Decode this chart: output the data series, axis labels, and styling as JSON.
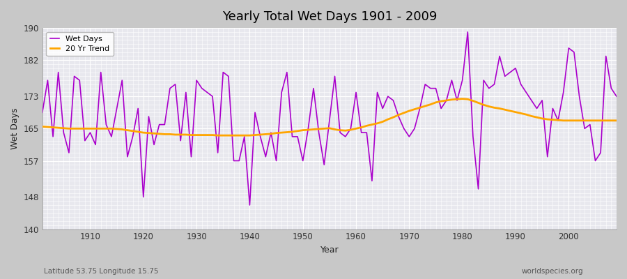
{
  "title": "Yearly Total Wet Days 1901 - 2009",
  "xlabel": "Year",
  "ylabel": "Wet Days",
  "lat_label": "Latitude 53.75 Longitude 15.75",
  "watermark": "worldspecies.org",
  "ylim": [
    140,
    190
  ],
  "yticks": [
    140,
    148,
    157,
    165,
    173,
    182,
    190
  ],
  "line_color": "#aa00cc",
  "trend_color": "#ffa500",
  "fig_bg_color": "#c8c8c8",
  "plot_bg_color": "#e8e8ee",
  "years": [
    1901,
    1902,
    1903,
    1904,
    1905,
    1906,
    1907,
    1908,
    1909,
    1910,
    1911,
    1912,
    1913,
    1914,
    1915,
    1916,
    1917,
    1918,
    1919,
    1920,
    1921,
    1922,
    1923,
    1924,
    1925,
    1926,
    1927,
    1928,
    1929,
    1930,
    1931,
    1932,
    1933,
    1934,
    1935,
    1936,
    1937,
    1938,
    1939,
    1940,
    1941,
    1942,
    1943,
    1944,
    1945,
    1946,
    1947,
    1948,
    1949,
    1950,
    1951,
    1952,
    1953,
    1954,
    1955,
    1956,
    1957,
    1958,
    1959,
    1960,
    1961,
    1962,
    1963,
    1964,
    1965,
    1966,
    1967,
    1968,
    1969,
    1970,
    1971,
    1972,
    1973,
    1974,
    1975,
    1976,
    1977,
    1978,
    1979,
    1980,
    1981,
    1982,
    1983,
    1984,
    1985,
    1986,
    1987,
    1988,
    1989,
    1990,
    1991,
    1992,
    1993,
    1994,
    1995,
    1996,
    1997,
    1998,
    1999,
    2000,
    2001,
    2002,
    2003,
    2004,
    2005,
    2006,
    2007,
    2008,
    2009
  ],
  "wet_days": [
    169,
    177,
    163,
    179,
    164,
    159,
    178,
    177,
    162,
    164,
    161,
    179,
    166,
    163,
    170,
    177,
    158,
    163,
    170,
    148,
    168,
    161,
    166,
    166,
    175,
    176,
    162,
    174,
    158,
    177,
    175,
    174,
    173,
    159,
    179,
    178,
    157,
    157,
    163,
    146,
    169,
    163,
    158,
    164,
    157,
    174,
    179,
    163,
    163,
    157,
    165,
    175,
    164,
    156,
    167,
    178,
    164,
    163,
    165,
    174,
    164,
    164,
    152,
    174,
    170,
    173,
    172,
    168,
    165,
    163,
    165,
    170,
    176,
    175,
    175,
    170,
    172,
    177,
    172,
    177,
    189,
    163,
    150,
    177,
    175,
    176,
    183,
    178,
    179,
    180,
    176,
    174,
    172,
    170,
    172,
    158,
    170,
    167,
    174,
    185,
    184,
    173,
    165,
    166,
    157,
    159,
    183,
    175,
    173
  ],
  "trend": [
    165.5,
    165.4,
    165.3,
    165.2,
    165.1,
    165.0,
    165.0,
    165.0,
    165.0,
    165.0,
    165.0,
    165.0,
    165.0,
    165.0,
    164.9,
    164.8,
    164.6,
    164.4,
    164.2,
    164.0,
    163.9,
    163.8,
    163.7,
    163.6,
    163.6,
    163.5,
    163.5,
    163.5,
    163.4,
    163.4,
    163.4,
    163.4,
    163.4,
    163.3,
    163.3,
    163.3,
    163.3,
    163.3,
    163.3,
    163.3,
    163.4,
    163.5,
    163.6,
    163.7,
    163.9,
    164.0,
    164.1,
    164.2,
    164.4,
    164.6,
    164.7,
    164.8,
    164.9,
    165.0,
    165.1,
    164.8,
    164.6,
    164.5,
    164.7,
    165.0,
    165.3,
    165.7,
    166.0,
    166.3,
    166.7,
    167.3,
    167.8,
    168.4,
    168.9,
    169.4,
    169.8,
    170.2,
    170.6,
    171.0,
    171.5,
    171.8,
    172.0,
    172.2,
    172.3,
    172.4,
    172.3,
    171.9,
    171.4,
    170.9,
    170.5,
    170.2,
    170.0,
    169.7,
    169.4,
    169.1,
    168.8,
    168.5,
    168.1,
    167.8,
    167.5,
    167.3,
    167.2,
    167.1,
    167.0,
    167.0,
    167.0,
    167.0,
    167.0,
    167.0,
    167.0,
    167.0,
    167.0,
    167.0,
    167.0
  ]
}
